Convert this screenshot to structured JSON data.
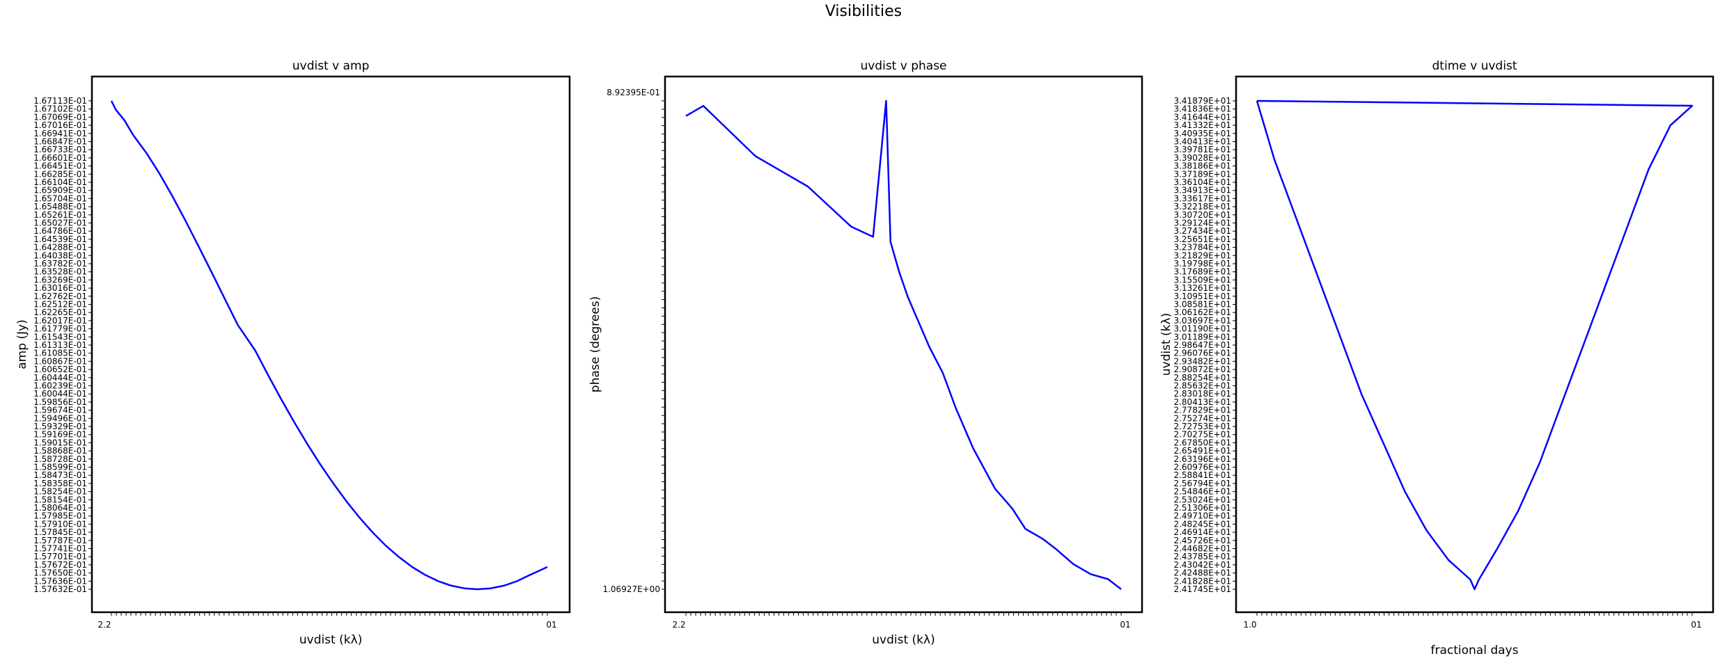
{
  "figure": {
    "title": "Visibilities"
  },
  "chart_data": [
    {
      "type": "line",
      "title": "uvdist v amp",
      "xlabel": "uvdist (kλ)",
      "ylabel": "amp (Jy)",
      "line_color": "#0000ff",
      "yticklabels": [
        "1.67113E-01",
        "1.67102E-01",
        "1.67069E-01",
        "1.67016E-01",
        "1.66941E-01",
        "1.66847E-01",
        "1.66733E-01",
        "1.66601E-01",
        "1.66451E-01",
        "1.66285E-01",
        "1.66104E-01",
        "1.65909E-01",
        "1.65704E-01",
        "1.65488E-01",
        "1.65261E-01",
        "1.65027E-01",
        "1.64786E-01",
        "1.64539E-01",
        "1.64288E-01",
        "1.64038E-01",
        "1.63782E-01",
        "1.63528E-01",
        "1.63269E-01",
        "1.63016E-01",
        "1.62762E-01",
        "1.62512E-01",
        "1.62265E-01",
        "1.62017E-01",
        "1.61779E-01",
        "1.61543E-01",
        "1.61313E-01",
        "1.61085E-01",
        "1.60867E-01",
        "1.60652E-01",
        "1.60444E-01",
        "1.60239E-01",
        "1.60044E-01",
        "1.59856E-01",
        "1.59674E-01",
        "1.59496E-01",
        "1.59329E-01",
        "1.59169E-01",
        "1.59015E-01",
        "1.58868E-01",
        "1.58728E-01",
        "1.58599E-01",
        "1.58473E-01",
        "1.58358E-01",
        "1.58254E-01",
        "1.58154E-01",
        "1.58064E-01",
        "1.57985E-01",
        "1.57910E-01",
        "1.57845E-01",
        "1.57787E-01",
        "1.57741E-01",
        "1.57701E-01",
        "1.57672E-01",
        "1.57650E-01",
        "1.57636E-01",
        "1.57632E-01"
      ],
      "xtick_label_first": "2.2",
      "xtick_label_last": "01",
      "x": [
        0.0,
        0.01,
        0.03,
        0.05,
        0.08,
        0.11,
        0.14,
        0.17,
        0.2,
        0.23,
        0.26,
        0.29,
        0.33,
        0.36,
        0.39,
        0.42,
        0.45,
        0.48,
        0.51,
        0.54,
        0.57,
        0.6,
        0.63,
        0.66,
        0.69,
        0.72,
        0.75,
        0.78,
        0.81,
        0.84,
        0.87,
        0.9,
        0.93,
        0.96,
        1.0
      ],
      "y": [
        0.167113,
        0.166941,
        0.166733,
        0.16645,
        0.166104,
        0.165704,
        0.165261,
        0.164786,
        0.164288,
        0.163782,
        0.163269,
        0.162762,
        0.162265,
        0.161779,
        0.161313,
        0.160867,
        0.160444,
        0.160044,
        0.159674,
        0.159329,
        0.159015,
        0.158728,
        0.158473,
        0.158254,
        0.158064,
        0.15791,
        0.157787,
        0.157701,
        0.15765,
        0.157632,
        0.15765,
        0.157701,
        0.157787,
        0.15791,
        0.158064
      ]
    },
    {
      "type": "line",
      "title": "uvdist v phase",
      "xlabel": "uvdist (kλ)",
      "ylabel": "phase (degrees)",
      "line_color": "#0000ff",
      "yticklabel_top": "8.92395E-01",
      "yticklabel_bottom": "1.06927E+00",
      "xtick_label_first": "2.2",
      "xtick_label_last": "01",
      "x": [
        0.0,
        0.04,
        0.1,
        0.16,
        0.22,
        0.28,
        0.33,
        0.38,
        0.43,
        0.46,
        0.47,
        0.49,
        0.51,
        0.53,
        0.56,
        0.59,
        0.62,
        0.66,
        0.71,
        0.75,
        0.78,
        0.8,
        0.82,
        0.85,
        0.89,
        0.93,
        0.97,
        1.0
      ],
      "y": [
        0.96,
        0.98,
        0.93,
        0.88,
        0.85,
        0.82,
        0.78,
        0.74,
        0.72,
        0.99,
        0.71,
        0.65,
        0.6,
        0.56,
        0.5,
        0.45,
        0.38,
        0.3,
        0.22,
        0.18,
        0.14,
        0.13,
        0.12,
        0.1,
        0.07,
        0.05,
        0.04,
        0.02
      ]
    },
    {
      "type": "line",
      "title": "dtime v uvdist",
      "xlabel": "fractional days",
      "ylabel": "uvdist (kλ)",
      "line_color": "#0000ff",
      "yticklabels": [
        "3.41879E+01",
        "3.41836E+01",
        "3.41644E+01",
        "3.41332E+01",
        "3.40935E+01",
        "3.40413E+01",
        "3.39781E+01",
        "3.39028E+01",
        "3.38186E+01",
        "3.37189E+01",
        "3.36104E+01",
        "3.34913E+01",
        "3.33617E+01",
        "3.32218E+01",
        "3.30720E+01",
        "3.29124E+01",
        "3.27434E+01",
        "3.25651E+01",
        "3.23784E+01",
        "3.21829E+01",
        "3.19798E+01",
        "3.17689E+01",
        "3.15509E+01",
        "3.13261E+01",
        "3.10951E+01",
        "3.08581E+01",
        "3.06162E+01",
        "3.03697E+01",
        "3.01190E+01",
        "3.01189E+01",
        "2.98647E+01",
        "2.96076E+01",
        "2.93482E+01",
        "2.90872E+01",
        "2.88254E+01",
        "2.85632E+01",
        "2.83018E+01",
        "2.80413E+01",
        "2.77829E+01",
        "2.75274E+01",
        "2.72753E+01",
        "2.70275E+01",
        "2.67850E+01",
        "2.65491E+01",
        "2.63196E+01",
        "2.60976E+01",
        "2.58841E+01",
        "2.56794E+01",
        "2.54846E+01",
        "2.53024E+01",
        "2.51306E+01",
        "2.49710E+01",
        "2.48245E+01",
        "2.46914E+01",
        "2.45726E+01",
        "2.44682E+01",
        "2.43785E+01",
        "2.43042E+01",
        "2.42488E+01",
        "2.41828E+01",
        "2.41745E+01"
      ],
      "xtick_label_first": "1.0",
      "xtick_label_last": "01",
      "x": [
        0.0,
        0.04,
        0.09,
        0.14,
        0.19,
        0.24,
        0.29,
        0.34,
        0.39,
        0.44,
        0.49,
        0.5,
        0.51,
        0.55,
        0.6,
        0.65,
        0.7,
        0.75,
        0.8,
        0.85,
        0.9,
        0.95,
        1.0,
        0.0
      ],
      "y": [
        1.0,
        0.88,
        0.76,
        0.64,
        0.52,
        0.4,
        0.3,
        0.2,
        0.12,
        0.06,
        0.02,
        0.0,
        0.02,
        0.08,
        0.16,
        0.26,
        0.38,
        0.5,
        0.62,
        0.74,
        0.86,
        0.95,
        0.99,
        1.0
      ]
    }
  ]
}
